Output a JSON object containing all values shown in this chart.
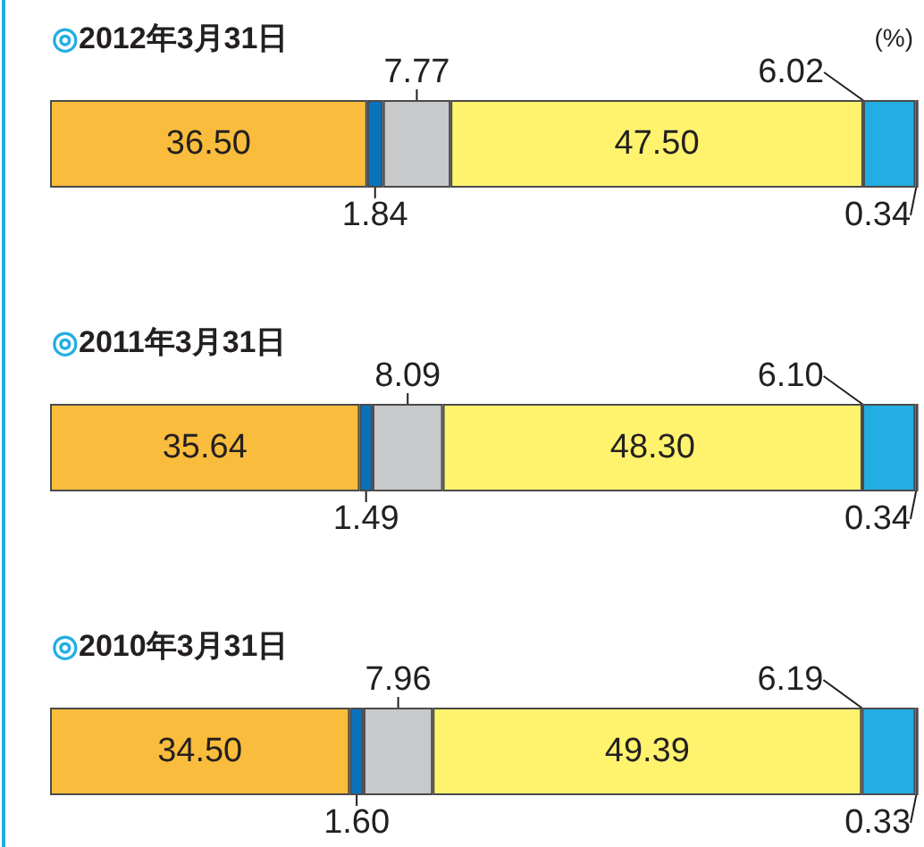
{
  "chart_data": [
    {
      "type": "bar",
      "orientation": "horizontal",
      "stacked": true,
      "title": "◎2012年3月31日",
      "annotations": [
        "(%)"
      ],
      "categories": [
        null
      ],
      "xlim": [
        0,
        100
      ],
      "tick_labels": false,
      "series": [
        {
          "color": "#f9bc3c",
          "values": [
            36.5
          ],
          "value_labels": [
            "36.50"
          ]
        },
        {
          "color": "#0a72bb",
          "values": [
            1.84
          ],
          "value_labels": [
            "1.84"
          ]
        },
        {
          "color": "#c8c9ca",
          "values": [
            7.77
          ],
          "value_labels": [
            "7.77"
          ]
        },
        {
          "color": "#fff36e",
          "values": [
            47.5
          ],
          "value_labels": [
            "47.50"
          ]
        },
        {
          "color": "#22aee2",
          "values": [
            6.02
          ],
          "value_labels": [
            "6.02"
          ]
        },
        {
          "color": "#231f20",
          "values": [
            0.34
          ],
          "value_labels": [
            "0.34"
          ]
        }
      ]
    },
    {
      "type": "bar",
      "orientation": "horizontal",
      "stacked": true,
      "title": "◎2011年3月31日",
      "categories": [
        null
      ],
      "xlim": [
        0,
        100
      ],
      "tick_labels": false,
      "series": [
        {
          "color": "#f9bc3c",
          "values": [
            35.64
          ],
          "value_labels": [
            "35.64"
          ]
        },
        {
          "color": "#0a72bb",
          "values": [
            1.49
          ],
          "value_labels": [
            "1.49"
          ]
        },
        {
          "color": "#c8c9ca",
          "values": [
            8.09
          ],
          "value_labels": [
            "8.09"
          ]
        },
        {
          "color": "#fff36e",
          "values": [
            48.3
          ],
          "value_labels": [
            "48.30"
          ]
        },
        {
          "color": "#22aee2",
          "values": [
            6.1
          ],
          "value_labels": [
            "6.10"
          ]
        },
        {
          "color": "#231f20",
          "values": [
            0.34
          ],
          "value_labels": [
            "0.34"
          ]
        }
      ]
    },
    {
      "type": "bar",
      "orientation": "horizontal",
      "stacked": true,
      "title": "◎2010年3月31日",
      "categories": [
        null
      ],
      "xlim": [
        0,
        100
      ],
      "tick_labels": false,
      "series": [
        {
          "color": "#f9bc3c",
          "values": [
            34.5
          ],
          "value_labels": [
            "34.50"
          ]
        },
        {
          "color": "#0a72bb",
          "values": [
            1.6
          ],
          "value_labels": [
            "1.60"
          ]
        },
        {
          "color": "#c8c9ca",
          "values": [
            7.96
          ],
          "value_labels": [
            "7.96"
          ]
        },
        {
          "color": "#fff36e",
          "values": [
            49.39
          ],
          "value_labels": [
            "49.39"
          ]
        },
        {
          "color": "#22aee2",
          "values": [
            6.19
          ],
          "value_labels": [
            "6.19"
          ]
        },
        {
          "color": "#231f20",
          "values": [
            0.33
          ],
          "value_labels": [
            "0.33"
          ]
        }
      ]
    }
  ]
}
